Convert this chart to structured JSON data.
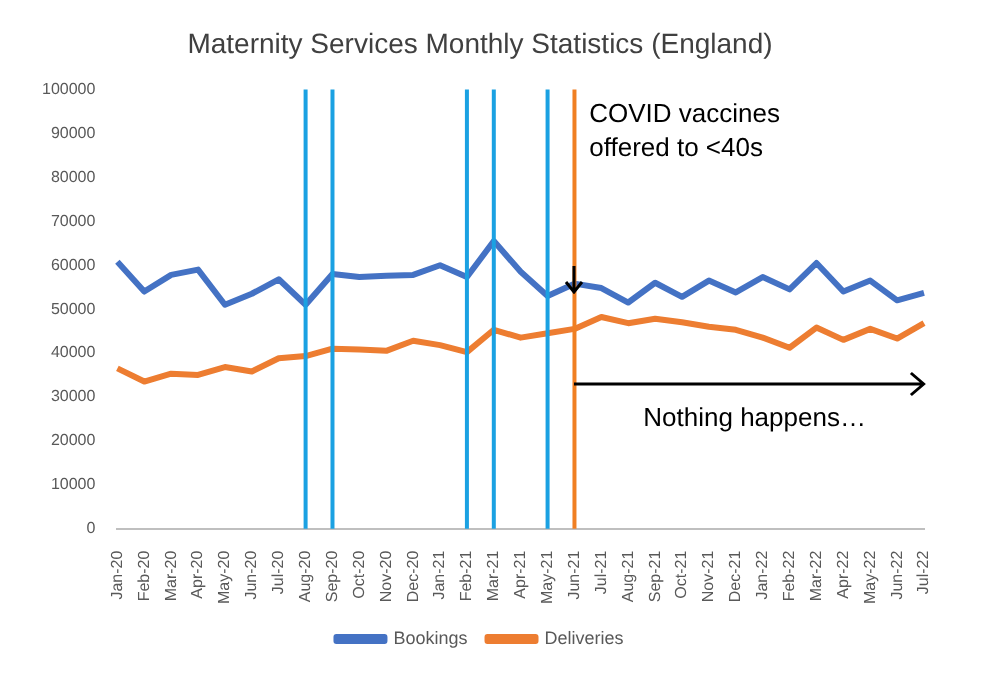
{
  "chart_data": {
    "type": "line",
    "title": "Maternity Services Monthly Statistics (England)",
    "categories": [
      "Jan-20",
      "Feb-20",
      "Mar-20",
      "Apr-20",
      "May-20",
      "Jun-20",
      "Jul-20",
      "Aug-20",
      "Sep-20",
      "Oct-20",
      "Nov-20",
      "Dec-20",
      "Jan-21",
      "Feb-21",
      "Mar-21",
      "Apr-21",
      "May-21",
      "Jun-21",
      "Jul-21",
      "Aug-21",
      "Sep-21",
      "Oct-21",
      "Nov-21",
      "Dec-21",
      "Jan-22",
      "Feb-22",
      "Mar-22",
      "Apr-22",
      "May-22",
      "Jun-22",
      "Jul-22"
    ],
    "series": [
      {
        "name": "Bookings",
        "color": "#4472c4",
        "values": [
          60800,
          54000,
          57800,
          59000,
          51000,
          53500,
          56800,
          51000,
          58000,
          57300,
          57600,
          57800,
          60000,
          57300,
          65500,
          58500,
          53000,
          55800,
          54800,
          51500,
          56000,
          52800,
          56500,
          53800,
          57300,
          54500,
          60500,
          54000,
          56500,
          52000,
          53700
        ]
      },
      {
        "name": "Deliveries",
        "color": "#ed7d31",
        "values": [
          36500,
          33500,
          35300,
          35000,
          36800,
          35800,
          38800,
          39300,
          41000,
          40800,
          40500,
          42800,
          41800,
          40200,
          45300,
          43500,
          44500,
          45500,
          48200,
          46800,
          47800,
          47000,
          46000,
          45300,
          43500,
          41200,
          45800,
          43000,
          45500,
          43300,
          46800
        ]
      }
    ],
    "ylim": [
      0,
      100000
    ],
    "yticks": [
      0,
      10000,
      20000,
      30000,
      40000,
      50000,
      60000,
      70000,
      80000,
      90000,
      100000
    ],
    "grid": false,
    "legend": "bottom",
    "marker": "none",
    "line_style": "solid",
    "ref_lines": [
      {
        "axis": "x",
        "value": "Aug-20",
        "color": "#1ba1e2"
      },
      {
        "axis": "x",
        "value": "Sep-20",
        "color": "#1ba1e2"
      },
      {
        "axis": "x",
        "value": "Feb-21",
        "color": "#1ba1e2"
      },
      {
        "axis": "x",
        "value": "Mar-21",
        "color": "#1ba1e2"
      },
      {
        "axis": "x",
        "value": "May-21",
        "color": "#1ba1e2"
      },
      {
        "axis": "x",
        "value": "Jun-21",
        "color": "#f07f22"
      }
    ],
    "annotations": [
      "COVID vaccines offered to <40s",
      "Nothing happens…"
    ]
  }
}
